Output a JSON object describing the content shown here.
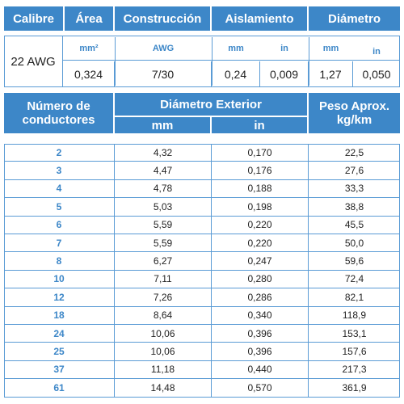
{
  "spec_table": {
    "headers": [
      "Calibre",
      "Área",
      "Construcción",
      "Aislamiento",
      "Diámetro"
    ],
    "gauge": "22 AWG",
    "units": [
      "mm²",
      "AWG",
      "mm",
      "in",
      "mm",
      "in"
    ],
    "values": [
      "0,324",
      "7/30",
      "0,24",
      "0,009",
      "1,27",
      "0,050"
    ]
  },
  "conductor_table": {
    "headers": {
      "conductors": "Número de conductores",
      "outer_diameter": "Diámetro Exterior",
      "weight": "Peso Aprox. kg/km"
    },
    "units": [
      "mm",
      "in"
    ],
    "rows": [
      [
        "2",
        "4,32",
        "0,170",
        "22,5"
      ],
      [
        "3",
        "4,47",
        "0,176",
        "27,6"
      ],
      [
        "4",
        "4,78",
        "0,188",
        "33,3"
      ],
      [
        "5",
        "5,03",
        "0,198",
        "38,8"
      ],
      [
        "6",
        "5,59",
        "0,220",
        "45,5"
      ],
      [
        "7",
        "5,59",
        "0,220",
        "50,0"
      ],
      [
        "8",
        "6,27",
        "0,247",
        "59,6"
      ],
      [
        "10",
        "7,11",
        "0,280",
        "72,4"
      ],
      [
        "12",
        "7,26",
        "0,286",
        "82,1"
      ],
      [
        "18",
        "8,64",
        "0,340",
        "118,9"
      ],
      [
        "24",
        "10,06",
        "0,396",
        "153,1"
      ],
      [
        "25",
        "10,06",
        "0,396",
        "157,6"
      ],
      [
        "37",
        "11,18",
        "0,440",
        "217,3"
      ],
      [
        "61",
        "14,48",
        "0,570",
        "361,9"
      ]
    ]
  }
}
